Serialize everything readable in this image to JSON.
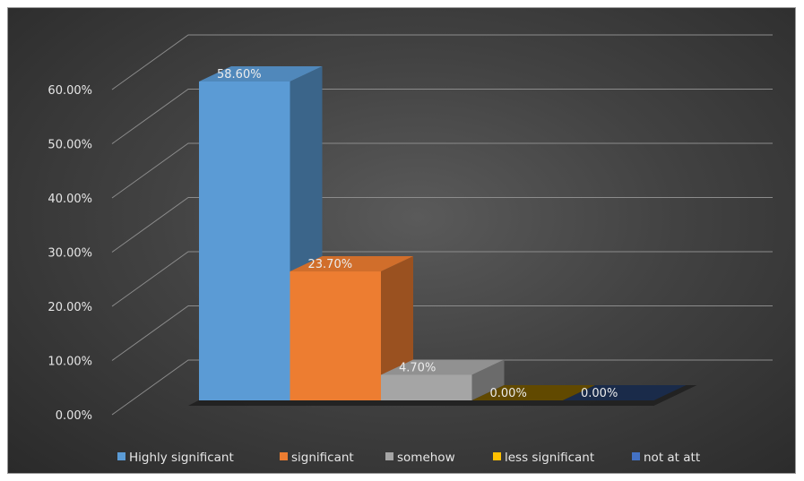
{
  "chart_data": {
    "type": "bar",
    "categories": [
      "Highly significant",
      "significant",
      "somehow",
      "less significant",
      "not at att"
    ],
    "values": [
      58.6,
      23.7,
      4.7,
      0.0,
      0.0
    ],
    "data_labels": [
      "58.60%",
      "23.70%",
      "4.70%",
      "0.00%",
      "0.00%"
    ],
    "ylim": [
      0,
      60
    ],
    "y_ticks": [
      "0.00%",
      "10.00%",
      "20.00%",
      "30.00%",
      "40.00%",
      "50.00%",
      "60.00%"
    ],
    "title": "",
    "xlabel": "",
    "ylabel": "",
    "grid": true,
    "legend_position": "bottom",
    "style": "3d-column",
    "colors": [
      "#5b9bd5",
      "#ed7d31",
      "#a5a5a5",
      "#ffc000",
      "#4472c4"
    ]
  }
}
